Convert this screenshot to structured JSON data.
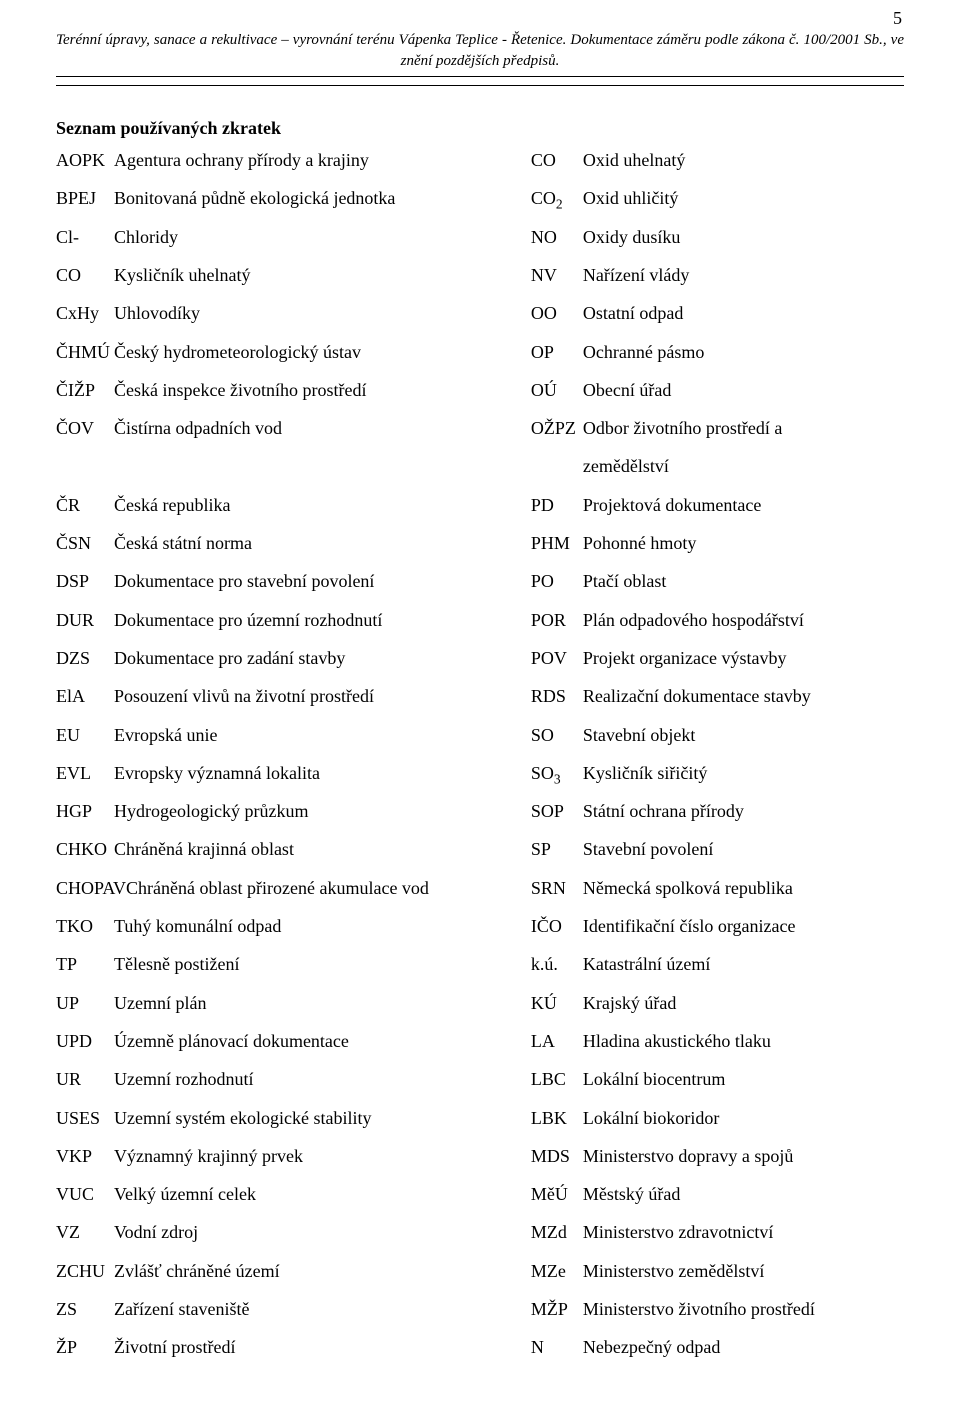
{
  "page_number": "5",
  "header_line1": "Terénní úpravy, sanace a rekultivace – vyrovnání terénu Vápenka Teplice - Řetenice. Dokumentace záměru podle zákona č. 100/2001 Sb., ve",
  "header_line2": "znění pozdějších předpisů.",
  "section_title": "Seznam používaných zkratek",
  "left": [
    {
      "code": "AOPK",
      "desc": "Agentura ochrany přírody a krajiny"
    },
    {
      "code": "BPEJ",
      "desc": "Bonitovaná půdně ekologická jednotka"
    },
    {
      "code": "Cl-",
      "desc": "Chloridy"
    },
    {
      "code": "CO",
      "desc": "Kysličník uhelnatý"
    },
    {
      "code": "CxHy",
      "desc": "Uhlovodíky"
    },
    {
      "code": "ČHMÚ",
      "desc": "Český hydrometeorologický ústav"
    },
    {
      "code": "ČIŽP",
      "desc": "Česká inspekce životního prostředí"
    },
    {
      "code": "ČOV",
      "desc": "Čistírna odpadních vod"
    },
    {
      "code": "",
      "desc": ""
    },
    {
      "code": "ČR",
      "desc": "Česká republika"
    },
    {
      "code": "ČSN",
      "desc": "Česká státní norma"
    },
    {
      "code": "DSP",
      "desc": "Dokumentace pro stavební povolení"
    },
    {
      "code": "DUR",
      "desc": "Dokumentace pro územní rozhodnutí"
    },
    {
      "code": "DZS",
      "desc": "Dokumentace pro zadání stavby"
    },
    {
      "code": "ElA",
      "desc": "Posouzení vlivů na životní prostředí"
    },
    {
      "code": "EU",
      "desc": "Evropská unie"
    },
    {
      "code": "EVL",
      "desc": "Evropsky významná lokalita"
    },
    {
      "code": "HGP",
      "desc": "Hydrogeologický průzkum"
    },
    {
      "code": "CHKO",
      "desc": "Chráněná krajinná oblast"
    },
    {
      "code": "CHOPAV",
      "desc": "Chráněná oblast přirozené akumulace vod"
    },
    {
      "code": "TKO",
      "desc": "Tuhý komunální odpad"
    },
    {
      "code": "TP",
      "desc": "Tělesně postižení"
    },
    {
      "code": "UP",
      "desc": "Uzemní plán"
    },
    {
      "code": "UPD",
      "desc": "Územně plánovací dokumentace"
    },
    {
      "code": "UR",
      "desc": "Uzemní rozhodnutí"
    },
    {
      "code": "USES",
      "desc": "Uzemní systém ekologické stability"
    },
    {
      "code": "VKP",
      "desc": "Významný krajinný prvek"
    },
    {
      "code": "VUC",
      "desc": "Velký územní celek"
    },
    {
      "code": "VZ",
      "desc": "Vodní zdroj"
    },
    {
      "code": "ZCHU",
      "desc": "Zvlášť chráněné území"
    },
    {
      "code": "ZS",
      "desc": "Zařízení staveniště"
    },
    {
      "code": "ŽP",
      "desc": "Životní prostředí"
    }
  ],
  "right": [
    {
      "code": "CO",
      "desc": "Oxid uhelnatý"
    },
    {
      "code_html": "CO<sub>2</sub>",
      "desc": "Oxid uhličitý"
    },
    {
      "code": "NO",
      "desc": "Oxidy dusíku"
    },
    {
      "code": "NV",
      "desc": "Nařízení vlády"
    },
    {
      "code": "OO",
      "desc": "Ostatní odpad"
    },
    {
      "code": "OP",
      "desc": "Ochranné pásmo"
    },
    {
      "code": "OÚ",
      "desc": "Obecní úřad"
    },
    {
      "code": "OŽPZ",
      "desc": "Odbor životního prostředí a"
    },
    {
      "code": "",
      "desc": "zemědělství"
    },
    {
      "code": "PD",
      "desc": "Projektová dokumentace"
    },
    {
      "code": "PHM",
      "desc": "Pohonné hmoty"
    },
    {
      "code": "PO",
      "desc": "Ptačí oblast"
    },
    {
      "code": "POR",
      "desc": "Plán odpadového hospodářství"
    },
    {
      "code": "POV",
      "desc": "Projekt organizace výstavby"
    },
    {
      "code": "RDS",
      "desc": "Realizační dokumentace stavby"
    },
    {
      "code": "SO",
      "desc": "Stavební objekt"
    },
    {
      "code_html": "SO<sub>3</sub>",
      "desc": "Kysličník siřičitý"
    },
    {
      "code": "SOP",
      "desc": "Státní ochrana přírody"
    },
    {
      "code": "SP",
      "desc": "Stavební povolení"
    },
    {
      "code": "SRN",
      "desc": "Německá spolková republika"
    },
    {
      "code": "IČO",
      "desc": "Identifikační číslo organizace"
    },
    {
      "code": "k.ú.",
      "desc": "Katastrální území"
    },
    {
      "code": "KÚ",
      "desc": "Krajský úřad"
    },
    {
      "code": "LA",
      "desc": "Hladina akustického tlaku"
    },
    {
      "code": "LBC",
      "desc": "Lokální biocentrum"
    },
    {
      "code": "LBK",
      "desc": "Lokální biokoridor"
    },
    {
      "code": "MDS",
      "desc": "Ministerstvo dopravy a spojů"
    },
    {
      "code": "MěÚ",
      "desc": "Městský úřad"
    },
    {
      "code": "MZd",
      "desc": "Ministerstvo zdravotnictví"
    },
    {
      "code": "MZe",
      "desc": "Ministerstvo zemědělství"
    },
    {
      "code": "MŽP",
      "desc": "Ministerstvo životního prostředí"
    },
    {
      "code": "N",
      "desc": "Nebezpečný odpad"
    }
  ]
}
